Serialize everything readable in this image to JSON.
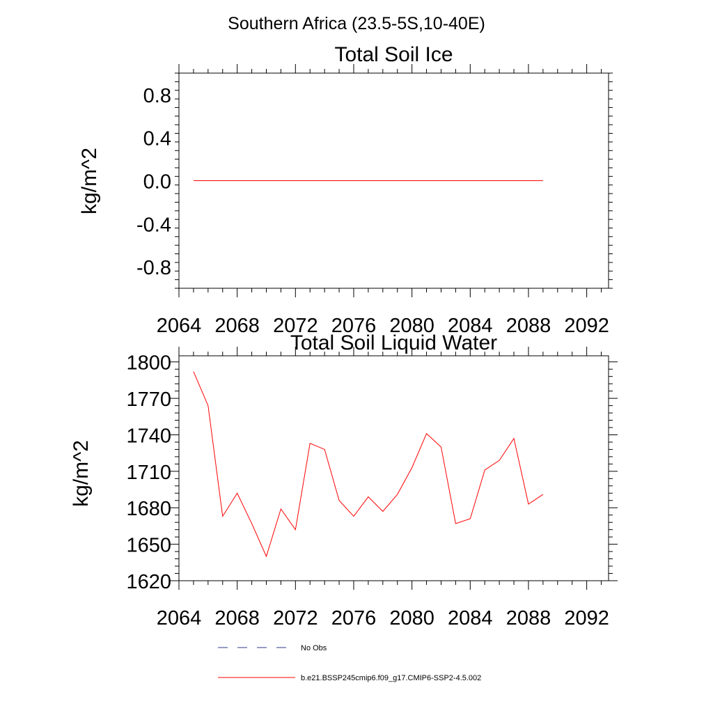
{
  "suptitle": "Southern Africa (23.5-5S,10-40E)",
  "colors": {
    "model_line": "#ff0000",
    "obs_line": "#2b3a8c",
    "axes": "#000000"
  },
  "chart_data": [
    {
      "type": "line",
      "title": "Total Soil Ice",
      "xlabel": "",
      "ylabel": "kg/m^2",
      "xlim": [
        2064,
        2093.5
      ],
      "ylim": [
        -1.0,
        1.0
      ],
      "xticks": [
        "2064",
        "2068",
        "2072",
        "2076",
        "2080",
        "2084",
        "2088",
        "2092"
      ],
      "yticks": [
        "-0.8",
        "-0.4",
        "0.0",
        "0.4",
        "0.8"
      ],
      "series": [
        {
          "name": "b.e21.BSSP245cmip6.f09_g17.CMIP6-SSP2-4.5.002",
          "x": [
            2065,
            2066,
            2067,
            2068,
            2069,
            2070,
            2071,
            2072,
            2073,
            2074,
            2075,
            2076,
            2077,
            2078,
            2079,
            2080,
            2081,
            2082,
            2083,
            2084,
            2085,
            2086,
            2087,
            2088,
            2089
          ],
          "values": [
            0,
            0,
            0,
            0,
            0,
            0,
            0,
            0,
            0,
            0,
            0,
            0,
            0,
            0,
            0,
            0,
            0,
            0,
            0,
            0,
            0,
            0,
            0,
            0,
            0
          ]
        }
      ]
    },
    {
      "type": "line",
      "title": "Total Soil Liquid Water",
      "xlabel": "",
      "ylabel": "kg/m^2",
      "xlim": [
        2064,
        2093.5
      ],
      "ylim": [
        1620,
        1805
      ],
      "xticks": [
        "2064",
        "2068",
        "2072",
        "2076",
        "2080",
        "2084",
        "2088",
        "2092"
      ],
      "yticks": [
        "1620",
        "1650",
        "1680",
        "1710",
        "1740",
        "1770",
        "1800"
      ],
      "series": [
        {
          "name": "b.e21.BSSP245cmip6.f09_g17.CMIP6-SSP2-4.5.002",
          "x": [
            2065,
            2066,
            2067,
            2068,
            2069,
            2070,
            2071,
            2072,
            2073,
            2074,
            2075,
            2076,
            2077,
            2078,
            2079,
            2080,
            2081,
            2082,
            2083,
            2084,
            2085,
            2086,
            2087,
            2088,
            2089
          ],
          "values": [
            1792,
            1764,
            1673,
            1692,
            1667,
            1640,
            1679,
            1662,
            1733,
            1728,
            1686,
            1673,
            1689,
            1677,
            1691,
            1713,
            1741,
            1730,
            1667,
            1671,
            1711,
            1719,
            1737,
            1683,
            1691
          ]
        }
      ]
    }
  ],
  "legend": {
    "position": "bottom",
    "items": [
      {
        "label": "No Obs",
        "style": "dashed"
      },
      {
        "label": "b.e21.BSSP245cmip6.f09_g17.CMIP6-SSP2-4.5.002",
        "style": "solid"
      }
    ]
  }
}
